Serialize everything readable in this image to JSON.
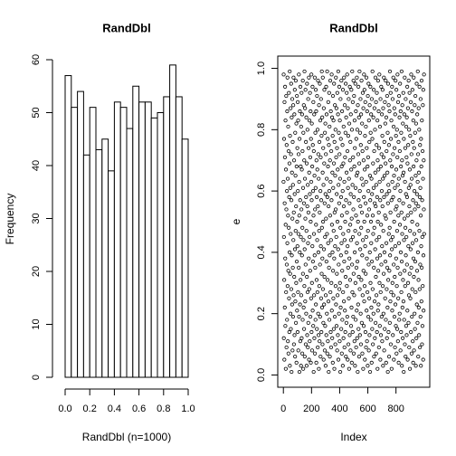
{
  "chart_data": [
    {
      "type": "histogram",
      "title": "RandDbl",
      "x_label": "RandDbl (n=1000)",
      "y_label": "Frequency",
      "bins": [
        0,
        0.05,
        0.1,
        0.15,
        0.2,
        0.25,
        0.3,
        0.35,
        0.4,
        0.45,
        0.5,
        0.55,
        0.6,
        0.65,
        0.7,
        0.75,
        0.8,
        0.85,
        0.9,
        0.95,
        1
      ],
      "counts": [
        57,
        51,
        54,
        42,
        51,
        43,
        45,
        39,
        52,
        51,
        47,
        55,
        52,
        52,
        49,
        50,
        53,
        59,
        53,
        45
      ],
      "color": "#ffffff",
      "xlim": [
        0,
        1
      ],
      "xticks": [
        {
          "value": 0,
          "label": "0.0"
        },
        0.2,
        0.4,
        0.6,
        0.8,
        {
          "value": 1,
          "label": "1.0"
        }
      ],
      "ylim": [
        0,
        60
      ],
      "yticks": [
        0,
        10,
        20,
        30,
        40,
        50,
        60
      ]
    },
    {
      "type": "scatter",
      "title": "RandDbl",
      "x_label": "Index",
      "y_label": "e",
      "color": "#000000",
      "xlim": [
        -40,
        1040
      ],
      "xticks": [
        0,
        200,
        400,
        600,
        800
      ],
      "ylim": [
        -0.04,
        1.04
      ],
      "yticks": [
        {
          "value": 0,
          "label": "0.0"
        },
        0.2,
        0.4,
        0.6,
        0.8,
        {
          "value": 1,
          "label": "1.0"
        }
      ],
      "values": [
        0.63,
        0.98,
        0.12,
        0.45,
        0.77,
        0.31,
        0.05,
        0.89,
        0.56,
        0.22,
        0.71,
        0.94,
        0.38,
        0.16,
        0.83,
        0.49,
        0.02,
        0.67,
        0.27,
        0.91,
        0.54,
        0.09,
        0.75,
        0.36,
        0.6,
        0.18,
        0.86,
        0.43,
        0.97,
        0.29,
        0.64,
        0.11,
        0.52,
        0.81,
        0.34,
        0.07,
        0.73,
        0.48,
        0.92,
        0.25,
        0.58,
        0.14,
        0.69,
        0.4,
        0.99,
        0.03,
        0.78,
        0.33,
        0.61,
        0.2,
        0.87,
        0.46,
        0.15,
        0.72,
        0.95,
        0.28,
        0.57,
        0.01,
        0.84,
        0.39,
        0.66,
        0.23,
        0.9,
        0.51,
        0.08,
        0.76,
        0.35,
        0.62,
        0.19,
        0.88,
        0.44,
        0.97,
        0.26,
        0.53,
        0.1,
        0.7,
        0.32,
        0.85,
        0.13,
        0.59,
        0.93,
        0.41,
        0.06,
        0.79,
        0.24,
        0.65,
        0.47,
        0.96,
        0.17,
        0.55,
        0.3,
        0.82,
        0.04,
        0.68,
        0.37,
        0.91,
        0.21,
        0.5,
        0.74,
        0.42,
        0.14,
        0.89,
        0.6,
        0.27,
        0.83,
        0.08,
        0.46,
        0.72,
        0.35,
        0.98,
        0.19,
        0.63,
        0.52,
        0.01,
        0.77,
        0.4,
        0.86,
        0.23,
        0.57,
        0.11,
        0.94,
        0.31,
        0.68,
        0.45,
        0.03,
        0.81,
        0.26,
        0.54,
        0.92,
        0.12,
        0.67,
        0.39,
        0.85,
        0.07,
        0.48,
        0.73,
        0.18,
        0.96,
        0.33,
        0.61,
        0.02,
        0.79,
        0.44,
        0.22,
        0.88,
        0.56,
        0.15,
        0.7,
        0.29,
        0.99,
        0.41,
        0.06,
        0.64,
        0.87,
        0.24,
        0.51,
        0.93,
        0.36,
        0.1,
        0.76,
        0.58,
        0.2,
        0.84,
        0.47,
        0.03,
        0.69,
        0.32,
        0.95,
        0.13,
        0.55,
        0.8,
        0.27,
        0.62,
        0.09,
        0.43,
        0.9,
        0.17,
        0.53,
        0.74,
        0.38,
        0.97,
        0.05,
        0.66,
        0.28,
        0.83,
        0.45,
        0.11,
        0.59,
        0.92,
        0.34,
        0.71,
        0.19,
        0.86,
        0.5,
        0.04,
        0.77,
        0.25,
        0.63,
        0.98,
        0.14,
        0.57,
        0.82,
        0.3,
        0.08,
        0.68,
        0.42,
        0.94,
        0.21,
        0.75,
        0.37,
        0.6,
        0.16,
        0.89,
        0.52,
        0.01,
        0.73,
        0.46,
        0.26,
        0.85,
        0.12,
        0.65,
        0.39,
        0.97,
        0.07,
        0.54,
        0.35,
        0.79,
        0.18,
        0.61,
        0.93,
        0.23,
        0.49,
        0.86,
        0.04,
        0.7,
        0.31,
        0.58,
        0.15,
        0.91,
        0.44,
        0.67,
        0.27,
        0.8,
        0.09,
        0.55,
        0.96,
        0.2,
        0.72,
        0.4,
        0.13,
        0.64,
        0.02,
        0.88,
        0.47,
        0.29,
        0.76,
        0.11,
        0.53,
        0.95,
        0.36,
        0.19,
        0.83,
        0.6,
        0.06,
        0.71,
        0.42,
        0.9,
        0.25,
        0.57,
        0.14,
        0.78,
        0.33,
        0.99,
        0.48,
        0.22,
        0.84,
        0.38,
        0.1,
        0.66,
        0.97,
        0.28,
        0.5,
        0.74,
        0.17,
        0.62,
        0.05,
        0.87,
        0.41,
        0.23,
        0.69,
        0.93,
        0.32,
        0.56,
        0.08,
        0.79,
        0.45,
        0.16,
        0.82,
        0.59,
        0.03,
        0.26,
        0.72,
        0.51,
        0.94,
        0.13,
        0.37,
        0.85,
        0.64,
        0.2,
        0.46,
        0.99,
        0.07,
        0.58,
        0.31,
        0.77,
        0.11,
        0.68,
        0.43,
        0.89,
        0.24,
        0.55,
        0.01,
        0.75,
        0.35,
        0.92,
        0.6,
        0.18,
        0.81,
        0.39,
        0.06,
        0.7,
        0.52,
        0.96,
        0.27,
        0.63,
        0.14,
        0.86,
        0.44,
        0.09,
        0.73,
        0.3,
        0.57,
        0.98,
        0.21,
        0.49,
        0.84,
        0.12,
        0.66,
        0.4,
        0.78,
        0.04,
        0.91,
        0.34,
        0.61,
        0.25,
        0.83,
        0.47,
        0.15,
        0.69,
        0.95,
        0.38,
        0.02,
        0.76,
        0.53,
        0.19,
        0.88,
        0.42,
        0.65,
        0.1,
        0.8,
        0.29,
        0.54,
        0.97,
        0.23,
        0.71,
        0.45,
        0.87,
        0.16,
        0.59,
        0.33,
        0.74,
        0.08,
        0.92,
        0.5,
        0.26,
        0.67,
        0.13,
        0.85,
        0.41,
        0.99,
        0.05,
        0.62,
        0.36,
        0.79,
        0.2,
        0.56,
        0.94,
        0.28,
        0.72,
        0.11,
        0.83,
        0.3,
        0.64,
        0.01,
        0.48,
        0.9,
        0.22,
        0.77,
        0.39,
        0.58,
        0.15,
        0.96,
        0.43,
        0.68,
        0.07,
        0.52,
        0.86,
        0.34,
        0.18,
        0.75,
        0.6,
        0.03,
        0.93,
        0.27,
        0.46,
        0.69,
        0.12,
        0.81,
        0.55,
        0.24,
        0.97,
        0.37,
        0.63,
        0.09,
        0.44,
        0.88,
        0.21,
        0.71,
        0.5,
        0.14,
        0.79,
        0.32,
        0.95,
        0.06,
        0.57,
        0.84,
        0.4,
        0.17,
        0.66,
        0.92,
        0.29,
        0.53,
        0.98,
        0.19,
        0.73,
        0.42,
        0.05,
        0.87,
        0.61,
        0.35,
        0.78,
        0.1,
        0.47,
        0.9,
        0.25,
        0.64,
        0.02,
        0.82,
        0.38,
        0.56,
        0.13,
        0.94,
        0.7,
        0.31,
        0.49,
        0.76,
        0.08,
        0.59,
        0.85,
        0.44,
        0.16,
        0.67,
        0.93,
        0.22,
        0.51,
        0.04,
        0.8,
        0.36,
        0.99,
        0.27,
        0.62,
        0.14,
        0.89,
        0.45,
        0.71,
        0.19,
        0.54,
        0.96,
        0.33,
        0.07,
        0.58,
        0.91,
        0.26,
        0.68,
        0.11,
        0.83,
        0.4,
        0.74,
        0.03,
        0.47,
        0.95,
        0.3,
        0.61,
        0.18,
        0.86,
        0.52,
        0.09,
        0.77,
        0.35,
        0.65,
        0.21,
        0.97,
        0.43,
        0.12,
        0.8,
        0.37,
        0.66,
        0.01,
        0.88,
        0.5,
        0.23,
        0.72,
        0.94,
        0.15,
        0.57,
        0.32,
        0.84,
        0.06,
        0.69,
        0.46,
        0.99,
        0.28,
        0.6,
        0.13,
        0.79,
        0.41,
        0.55,
        0.9,
        0.2,
        0.75,
        0.1,
        0.85,
        0.48,
        0.31,
        0.96,
        0.64,
        0.17,
        0.53,
        0.82,
        0.39,
        0.07,
        0.73,
        0.26,
        0.92,
        0.44,
        0.62,
        0.02,
        0.87,
        0.34,
        0.7,
        0.16,
        0.58,
        0.98,
        0.24,
        0.5,
        0.93,
        0.29,
        0.67,
        0.05,
        0.78,
        0.42,
        0.89,
        0.14,
        0.56,
        0.33,
        0.81,
        0.09,
        0.63,
        0.45,
        0.97,
        0.21,
        0.74,
        0.38,
        0.11,
        0.86,
        0.52,
        0.27,
        0.68,
        0.03,
        0.91,
        0.47,
        0.71,
        0.19,
        0.6,
        0.95,
        0.36,
        0.08,
        0.83,
        0.54,
        0.25,
        0.76,
        0.13,
        0.88,
        0.4,
        0.65,
        0.01,
        0.57,
        0.94,
        0.3,
        0.79,
        0.18,
        0.5,
        0.85,
        0.43,
        0.22,
        0.64,
        0.04,
        0.9,
        0.37,
        0.59,
        0.15,
        0.77,
        0.99,
        0.28,
        0.52,
        0.1,
        0.69,
        0.46,
        0.84,
        0.2,
        0.61,
        0.93,
        0.35,
        0.06,
        0.73,
        0.48,
        0.87,
        0.24,
        0.56,
        0.12,
        0.8,
        0.41,
        0.66,
        0.97,
        0.17,
        0.55,
        0.32,
        0.89,
        0.07,
        0.62,
        0.26,
        0.75,
        0.44,
        0.92,
        0.14,
        0.58,
        0.38,
        0.83,
        0.02,
        0.7,
        0.5,
        0.21,
        0.96,
        0.34,
        0.67,
        0.23,
        0.86,
        0.53,
        0.09,
        0.74,
        0.45,
        0.98,
        0.3,
        0.63,
        0.16,
        0.81,
        0.39,
        0.57,
        0.05,
        0.9,
        0.27,
        0.68,
        0.13,
        0.49,
        0.94,
        0.36,
        0.72,
        0.19,
        0.6,
        0.85,
        0.42,
        0.11,
        0.78,
        0.55,
        0.93,
        0.29,
        0.64,
        0.03,
        0.87,
        0.47,
        0.2,
        0.71,
        0.33,
        0.97,
        0.58,
        0.08,
        0.76,
        0.4,
        0.65,
        0.15,
        0.89,
        0.52,
        0.25,
        0.82,
        0.37,
        0.69,
        0.96,
        0.18,
        0.51,
        0.04,
        0.84,
        0.43,
        0.73,
        0.28,
        0.59,
        0.12,
        0.91,
        0.35,
        0.66,
        0.22,
        0.79,
        0.01,
        0.56,
        0.95,
        0.31,
        0.62,
        0.14,
        0.88,
        0.46,
        0.75,
        0.06,
        0.6,
        0.34,
        0.86,
        0.48,
        0.17,
        0.99,
        0.39,
        0.7,
        0.24,
        0.53,
        0.92,
        0.1,
        0.77,
        0.44,
        0.27,
        0.83,
        0.57,
        0.02,
        0.68,
        0.41,
        0.94,
        0.21,
        0.63,
        0.3,
        0.9,
        0.45,
        0.13,
        0.72,
        0.58,
        0.97,
        0.26,
        0.81,
        0.36,
        0.05,
        0.65,
        0.5,
        0.87,
        0.19,
        0.74,
        0.32,
        0.61,
        0.09,
        0.85,
        0.42,
        0.23,
        0.96,
        0.54,
        0.16,
        0.78,
        0.38,
        0.67,
        0.93,
        0.07,
        0.55,
        0.29,
        0.8,
        0.47,
        0.15,
        0.71,
        0.98,
        0.35,
        0.62,
        0.11,
        0.89,
        0.25,
        0.52,
        0.76,
        0.04,
        0.64,
        0.43,
        0.91,
        0.18,
        0.57,
        0.84,
        0.2,
        0.73,
        0.49,
        0.95,
        0.33,
        0.6,
        0.08,
        0.86,
        0.4,
        0.68,
        0.14,
        0.79,
        0.27,
        0.53,
        0.99,
        0.37,
        0.03,
        0.7,
        0.46,
        0.88,
        0.22,
        0.65,
        0.12,
        0.82,
        0.31,
        0.56,
        0.92,
        0.24,
        0.66,
        0.01,
        0.77,
        0.44,
        0.18,
        0.85,
        0.51,
        0.34,
        0.97,
        0.1,
        0.63,
        0.29,
        0.74,
        0.48,
        0.06,
        0.9,
        0.39,
        0.59,
        0.16,
        0.81,
        0.45,
        0.71,
        0.13,
        0.84,
        0.36,
        0.58,
        0.94,
        0.21,
        0.69,
        0.05,
        0.52,
        0.87,
        0.3,
        0.75,
        0.42,
        0.17,
        0.96,
        0.61,
        0.26,
        0.8,
        0.09,
        0.55,
        0.92,
        0.33,
        0.67,
        0.02,
        0.47,
        0.78,
        0.25,
        0.62,
        0.41,
        0.89,
        0.14,
        0.53,
        0.98,
        0.35,
        0.72,
        0.07,
        0.64,
        0.19,
        0.86,
        0.5,
        0.28,
        0.93,
        0.43,
        0.11,
        0.76,
        0.57,
        0.04,
        0.83,
        0.38,
        0.68,
        0.97,
        0.32,
        0.08,
        0.74,
        0.46,
        0.6,
        0.2,
        0.88,
        0.54,
        0.15,
        0.79,
        0.37,
        0.91,
        0.27,
        0.65,
        0.03,
        0.56,
        0.82,
        0.44,
        0.12,
        0.7,
        0.95,
        0.23,
        0.59,
        0.34,
        0.85,
        0.49,
        0.17,
        0.63,
        0.99,
        0.4,
        0.72,
        0.06,
        0.55,
        0.31,
        0.87,
        0.22,
        0.66,
        0.13,
        0.8,
        0.47,
        0.94,
        0.28,
        0.58,
        0.09,
        0.75,
        0.36,
        0.61,
        0.19,
        0.9,
        0.52,
        0.03,
        0.77,
        0.42,
        0.68,
        0.24,
        0.96,
        0.35,
        0.83,
        0.1,
        0.57,
        0.45,
        0.16,
        0.73,
        0.29,
        0.88,
        0.64,
        0.05,
        0.93,
        0.39,
        0.21,
        0.7,
        0.54,
        0.98,
        0.46
      ]
    }
  ]
}
